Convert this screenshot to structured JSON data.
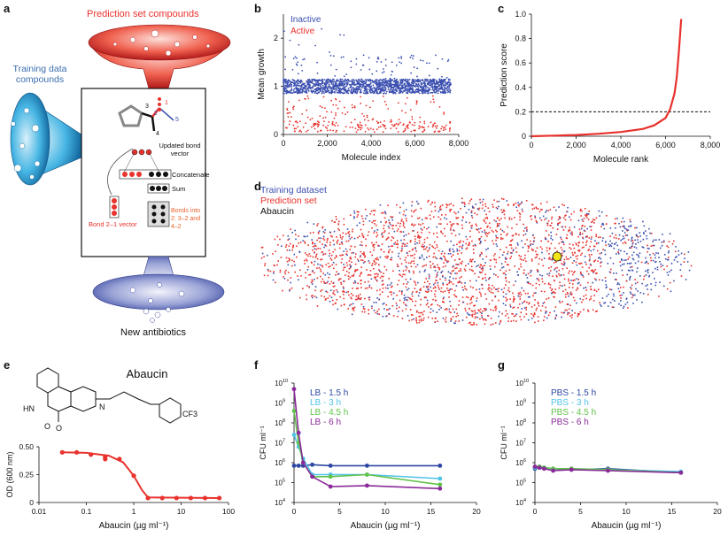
{
  "panel_letters": {
    "a": "a",
    "b": "b",
    "c": "c",
    "d": "d",
    "e": "e",
    "f": "f",
    "g": "g"
  },
  "colors": {
    "inactive": "#3b4fb0",
    "active": "#e8322d",
    "abaucin": "#f2e61a",
    "cyan": "#4fc3e8",
    "green": "#62c24a",
    "purple": "#8a2a9a",
    "darkblue": "#2d47a3"
  },
  "panel_a": {
    "prediction_label": "Prediction set compounds",
    "training_label": "Training data compounds",
    "updated_bond_vector": "Updated bond vector",
    "concatenate": "Concatenate",
    "sum": "Sum",
    "bonds_into": "Bonds into 2: 3–2 and 4–2",
    "bond_vector": "Bond 2–1 vector",
    "new_antibiotics": "New antibiotics",
    "atom_numbers": [
      "1",
      "2",
      "3",
      "4",
      "5"
    ]
  },
  "chart_data": [
    {
      "id": "b",
      "type": "scatter",
      "xlabel": "Molecule index",
      "ylabel": "Mean growth",
      "xlim": [
        0,
        8000
      ],
      "ylim": [
        0,
        2.5
      ],
      "xticks": [
        "0",
        "2,000",
        "4,000",
        "6,000",
        "8,000"
      ],
      "yticks": [
        "0",
        "1",
        "2"
      ],
      "legend": [
        "Inactive",
        "Active"
      ],
      "series": [
        {
          "name": "Inactive",
          "y_band": [
            0.8,
            1.2
          ],
          "n_points": 7684
        },
        {
          "name": "Active",
          "y_band": [
            0.05,
            0.8
          ],
          "n_points": 480
        }
      ]
    },
    {
      "id": "c",
      "type": "line",
      "xlabel": "Molecule rank",
      "ylabel": "Prediction score",
      "xlim": [
        0,
        8000
      ],
      "ylim": [
        0,
        1.0
      ],
      "xticks": [
        "0",
        "2,000",
        "4,000",
        "6,000",
        "8,000"
      ],
      "yticks": [
        "0",
        "0.2",
        "0.4",
        "0.6",
        "0.8",
        "1.0"
      ],
      "threshold": 0.2,
      "x": [
        0,
        1000,
        2000,
        3000,
        4000,
        5000,
        5500,
        6000,
        6200,
        6400,
        6500,
        6600,
        6700
      ],
      "y": [
        0,
        0.005,
        0.01,
        0.02,
        0.035,
        0.06,
        0.09,
        0.15,
        0.22,
        0.35,
        0.48,
        0.7,
        0.96
      ]
    },
    {
      "id": "d",
      "type": "scatter",
      "legend": [
        "Training dataset",
        "Prediction set",
        "Abaucin"
      ]
    },
    {
      "id": "e",
      "type": "line",
      "title": "Abaucin",
      "xlabel": "Abaucin (µg ml⁻¹)",
      "ylabel": "OD (600 nm)",
      "xscale": "log",
      "xlim": [
        0.01,
        100
      ],
      "ylim": [
        0,
        0.5
      ],
      "xticks": [
        "0.01",
        "0.1",
        "1",
        "10",
        "100"
      ],
      "yticks": [
        "0",
        "0.25",
        "0.50"
      ],
      "points_x": [
        0.031,
        0.0625,
        0.125,
        0.25,
        0.25,
        0.5,
        1,
        2,
        4,
        8,
        16,
        32,
        64
      ],
      "points_y": [
        0.45,
        0.45,
        0.43,
        0.41,
        0.39,
        0.39,
        0.24,
        0.04,
        0.04,
        0.04,
        0.04,
        0.04,
        0.04
      ],
      "fit_x": [
        0.031,
        0.1,
        0.3,
        0.6,
        1,
        1.5,
        2,
        64
      ],
      "fit_y": [
        0.45,
        0.445,
        0.42,
        0.36,
        0.24,
        0.11,
        0.045,
        0.04
      ],
      "chem_labels": [
        "HN",
        "O",
        "O",
        "N",
        "CF3"
      ]
    },
    {
      "id": "f",
      "type": "line",
      "xlabel": "Abaucin (µg ml⁻¹)",
      "ylabel": "CFU ml⁻¹",
      "ylog": true,
      "xlim": [
        0,
        20
      ],
      "ylim_exp": [
        4,
        10
      ],
      "xticks": [
        "0",
        "5",
        "10",
        "15",
        "20"
      ],
      "yticks": [
        "10",
        "10",
        "10",
        "10",
        "10",
        "10",
        "10"
      ],
      "ytick_exps": [
        "4",
        "5",
        "6",
        "7",
        "8",
        "9",
        "10"
      ],
      "x": [
        0,
        0.5,
        1,
        2,
        4,
        8,
        16
      ],
      "series": [
        {
          "name": "LB - 1.5 h",
          "color": "#2d47a3",
          "log10": [
            5.85,
            5.85,
            5.85,
            5.9,
            5.85,
            5.85,
            5.85
          ]
        },
        {
          "name": "LB - 3 h",
          "color": "#4fc3e8",
          "log10": [
            7.4,
            6.8,
            6.2,
            5.4,
            5.4,
            5.4,
            5.2
          ]
        },
        {
          "name": "LB - 4.5 h",
          "color": "#62c24a",
          "log10": [
            8.6,
            7.0,
            6.0,
            5.3,
            5.3,
            5.4,
            4.9
          ]
        },
        {
          "name": "LB - 6 h",
          "color": "#8a2a9a",
          "log10": [
            9.7,
            7.5,
            6.0,
            5.3,
            4.8,
            4.85,
            4.7
          ]
        }
      ]
    },
    {
      "id": "g",
      "type": "line",
      "xlabel": "Abaucin (µg ml⁻¹)",
      "ylabel": "CFU ml⁻¹",
      "ylog": true,
      "xlim": [
        0,
        20
      ],
      "ylim_exp": [
        4,
        10
      ],
      "xticks": [
        "0",
        "5",
        "10",
        "15",
        "20"
      ],
      "yticks": [
        "10",
        "10",
        "10",
        "10",
        "10",
        "10",
        "10"
      ],
      "ytick_exps": [
        "4",
        "5",
        "6",
        "7",
        "8",
        "9",
        "10"
      ],
      "x": [
        0,
        0.5,
        1,
        2,
        4,
        8,
        16
      ],
      "series": [
        {
          "name": "PBS - 1.5 h",
          "color": "#2d47a3",
          "log10": [
            5.7,
            5.75,
            5.75,
            5.7,
            5.65,
            5.7,
            5.5
          ]
        },
        {
          "name": "PBS - 3 h",
          "color": "#4fc3e8",
          "log10": [
            5.75,
            5.8,
            5.75,
            5.7,
            5.7,
            5.65,
            5.55
          ]
        },
        {
          "name": "PBS - 4.5 h",
          "color": "#62c24a",
          "log10": [
            5.8,
            5.8,
            5.75,
            5.7,
            5.7,
            5.65,
            5.5
          ]
        },
        {
          "name": "PBS - 6 h",
          "color": "#8a2a9a",
          "log10": [
            5.8,
            5.75,
            5.7,
            5.6,
            5.65,
            5.6,
            5.5
          ]
        }
      ]
    }
  ]
}
